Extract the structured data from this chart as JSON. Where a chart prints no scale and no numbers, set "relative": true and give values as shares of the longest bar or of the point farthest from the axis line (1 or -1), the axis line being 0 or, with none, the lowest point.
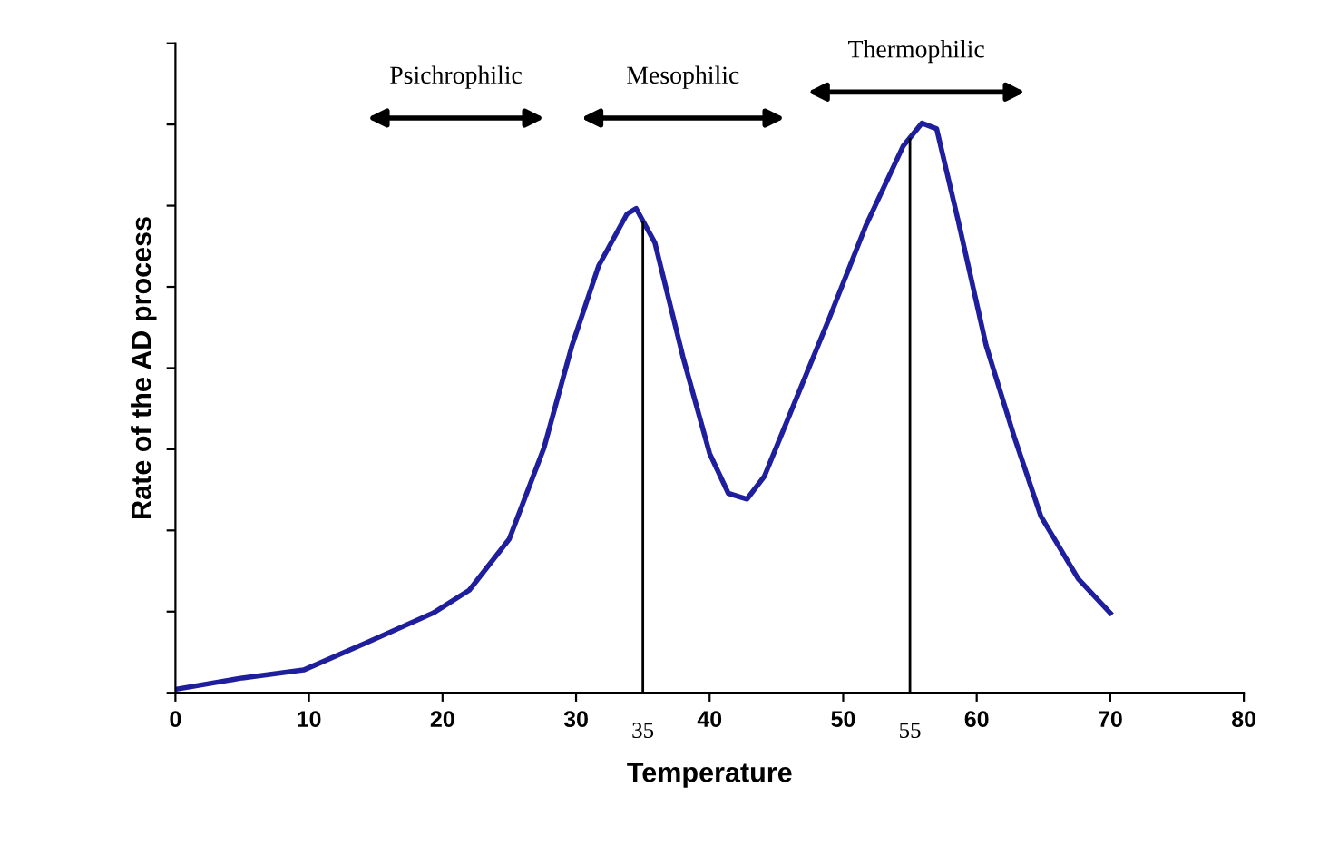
{
  "chart_data": {
    "type": "line",
    "relative": true,
    "xlabel": "Temperature",
    "ylabel": "Rate of the AD process",
    "x": [
      0,
      5,
      9.6,
      14.5,
      19.3,
      22,
      25,
      27.6,
      29.7,
      31.7,
      33.8,
      34.5,
      35.9,
      38,
      40,
      41.4,
      42.8,
      44.1,
      46.2,
      49,
      51.7,
      54.5,
      55.9,
      57,
      58.6,
      60.7,
      62.8,
      64.8,
      67.6,
      70
    ],
    "series": [
      {
        "color": "#1f1f9e",
        "values": [
          0.006,
          0.026,
          0.04,
          0.09,
          0.14,
          0.18,
          0.27,
          0.43,
          0.61,
          0.75,
          0.84,
          0.85,
          0.79,
          0.59,
          0.42,
          0.35,
          0.34,
          0.38,
          0.5,
          0.66,
          0.82,
          0.96,
          1.0,
          0.99,
          0.83,
          0.61,
          0.45,
          0.31,
          0.2,
          0.14
        ]
      }
    ],
    "xlim": [
      0,
      80
    ],
    "xticks": [
      0,
      10,
      20,
      30,
      40,
      50,
      60,
      70,
      80
    ],
    "ref_lines": [
      {
        "axis": "x",
        "value": 35,
        "label": "35",
        "color": "#000000"
      },
      {
        "axis": "x",
        "value": 55,
        "label": "55",
        "color": "#000000"
      }
    ],
    "annotations": [
      "Psichrophilic",
      "Mesophilic",
      "Thermophilic"
    ],
    "grid": false,
    "legend": false,
    "marker": "none",
    "line_style": "solid"
  }
}
